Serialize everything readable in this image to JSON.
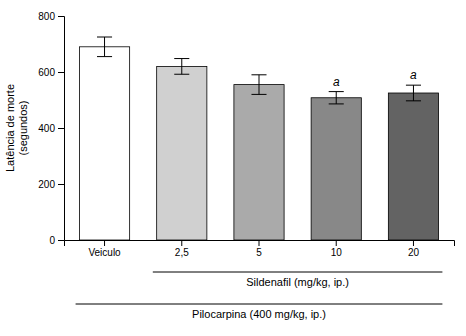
{
  "chart_data": {
    "type": "bar",
    "categories": [
      "Veiculo",
      "2,5",
      "5",
      "10",
      "20"
    ],
    "values": [
      690,
      620,
      555,
      508,
      525
    ],
    "errors": [
      35,
      28,
      35,
      22,
      28
    ],
    "colors": [
      "#ffffff",
      "#d0d0d0",
      "#aaaaaa",
      "#888888",
      "#636363"
    ],
    "ylabel": "Latência de morte\n(segundos)",
    "ylim": [
      0,
      800
    ],
    "yticks": [
      0,
      200,
      400,
      600,
      800
    ],
    "annotations": [
      {
        "text": "a",
        "x": "10"
      },
      {
        "text": "a",
        "x": "20"
      },
      {
        "text": "Sildenafil (mg/kg, ip.)",
        "from": "2,5",
        "to": "20"
      },
      {
        "text": "Pilocarpina (400 mg/kg, ip.)",
        "from": "Veiculo",
        "to": "20"
      }
    ]
  }
}
